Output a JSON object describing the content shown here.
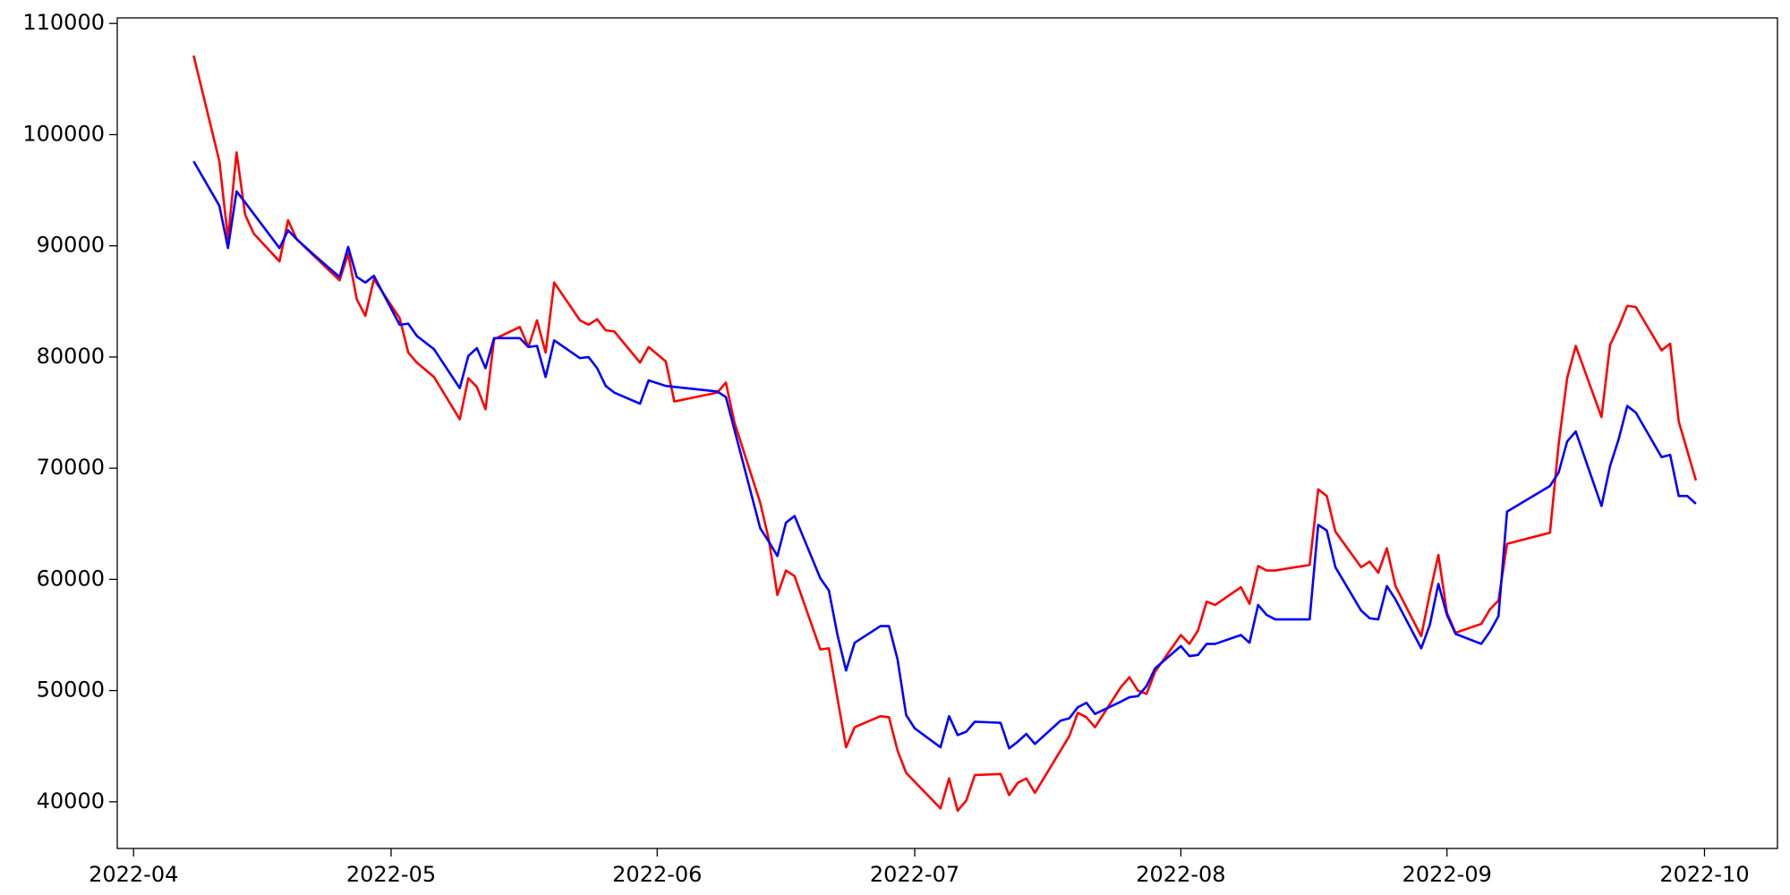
{
  "chart_data": {
    "type": "line",
    "xlim": [
      89.1,
      282.5
    ],
    "xticks": [
      {
        "value": 91,
        "label": "2022-04"
      },
      {
        "value": 121,
        "label": "2022-05"
      },
      {
        "value": 152,
        "label": "2022-06"
      },
      {
        "value": 182,
        "label": "2022-07"
      },
      {
        "value": 213,
        "label": "2022-08"
      },
      {
        "value": 244,
        "label": "2022-09"
      },
      {
        "value": 274,
        "label": "2022-10"
      }
    ],
    "ylim": [
      35800,
      110500
    ],
    "yticks": [
      40000,
      50000,
      60000,
      70000,
      80000,
      90000,
      100000,
      110000
    ],
    "grid": false,
    "series": [
      {
        "color": "#ff0000",
        "x": [
          98,
          101,
          102,
          103,
          104,
          105,
          108,
          109,
          110,
          112,
          115,
          116,
          117,
          118,
          119,
          122,
          123,
          124,
          126,
          129,
          130,
          131,
          132,
          133,
          136,
          137,
          138,
          139,
          140,
          143,
          144,
          145,
          146,
          147,
          150,
          151,
          153,
          154,
          159,
          160,
          161,
          164,
          165,
          166,
          167,
          168,
          171,
          172,
          173,
          174,
          175,
          178,
          179,
          180,
          181,
          185,
          186,
          187,
          188,
          189,
          192,
          193,
          194,
          195,
          196,
          200,
          201,
          202,
          203,
          206,
          207,
          208,
          209,
          210,
          213,
          214,
          215,
          216,
          217,
          220,
          221,
          222,
          223,
          224,
          228,
          229,
          230,
          231,
          234,
          235,
          236,
          237,
          238,
          241,
          242,
          243,
          244,
          245,
          248,
          249,
          250,
          251,
          256,
          257,
          258,
          259,
          262,
          263,
          264,
          265,
          266,
          269,
          270,
          271,
          273
        ],
        "values": [
          107100,
          97600,
          90600,
          98400,
          92800,
          91100,
          88600,
          92300,
          90600,
          89100,
          86900,
          89300,
          85200,
          83700,
          87000,
          83500,
          80400,
          79500,
          78200,
          74400,
          78100,
          77300,
          75300,
          81600,
          82700,
          80900,
          83300,
          80400,
          86700,
          83300,
          82900,
          83400,
          82400,
          82300,
          79500,
          80900,
          79600,
          76000,
          76800,
          77700,
          74100,
          66900,
          63600,
          58600,
          60800,
          60300,
          53700,
          53800,
          49300,
          44900,
          46700,
          47700,
          47600,
          44600,
          42600,
          39400,
          42100,
          39200,
          40100,
          42400,
          42500,
          40600,
          41700,
          42100,
          40800,
          45900,
          48000,
          47600,
          46700,
          50300,
          51200,
          50000,
          49700,
          51700,
          55000,
          54200,
          55400,
          58000,
          57700,
          59300,
          57800,
          61200,
          60800,
          60800,
          61300,
          68100,
          67500,
          64300,
          61100,
          61600,
          60600,
          62800,
          59400,
          54900,
          58700,
          62200,
          57000,
          55200,
          56000,
          57300,
          58100,
          63200,
          64200,
          72100,
          78100,
          81000,
          74600,
          81100,
          82700,
          84600,
          84500,
          80600,
          81200,
          74200,
          68900
        ]
      },
      {
        "color": "#0000ff",
        "x": [
          98,
          101,
          102,
          103,
          104,
          108,
          109,
          110,
          112,
          115,
          116,
          117,
          118,
          119,
          122,
          123,
          124,
          126,
          129,
          130,
          131,
          132,
          133,
          136,
          137,
          138,
          139,
          140,
          143,
          144,
          145,
          146,
          147,
          150,
          151,
          153,
          159,
          160,
          164,
          165,
          166,
          167,
          168,
          171,
          172,
          173,
          174,
          175,
          178,
          179,
          180,
          181,
          182,
          185,
          186,
          187,
          188,
          189,
          192,
          193,
          194,
          195,
          196,
          199,
          200,
          201,
          202,
          203,
          206,
          207,
          208,
          209,
          210,
          213,
          214,
          215,
          216,
          217,
          220,
          221,
          222,
          223,
          224,
          228,
          229,
          230,
          231,
          234,
          235,
          236,
          237,
          238,
          241,
          242,
          243,
          244,
          245,
          248,
          249,
          250,
          251,
          256,
          257,
          258,
          259,
          262,
          263,
          264,
          265,
          266,
          269,
          270,
          271,
          272,
          273
        ],
        "values": [
          97600,
          93600,
          89800,
          94900,
          93900,
          89800,
          91400,
          90600,
          89200,
          87200,
          89900,
          87200,
          86700,
          87300,
          82900,
          83000,
          81900,
          80700,
          77200,
          80100,
          80800,
          79000,
          81700,
          81700,
          80900,
          81000,
          78200,
          81500,
          79900,
          80000,
          79000,
          77400,
          76800,
          75800,
          77900,
          77400,
          76900,
          76400,
          64600,
          63400,
          62100,
          65100,
          65700,
          60100,
          59000,
          55000,
          51800,
          54300,
          55800,
          55800,
          52800,
          47800,
          46600,
          44900,
          47700,
          46000,
          46300,
          47200,
          47100,
          44800,
          45400,
          46100,
          45200,
          47300,
          47500,
          48500,
          48900,
          47900,
          49000,
          49400,
          49500,
          50400,
          52000,
          54000,
          53100,
          53200,
          54200,
          54200,
          55000,
          54300,
          57700,
          56800,
          56400,
          56400,
          64900,
          64400,
          61100,
          57200,
          56500,
          56400,
          59400,
          58200,
          53800,
          55900,
          59600,
          56800,
          55100,
          54200,
          55300,
          56700,
          66100,
          68400,
          69600,
          72400,
          73300,
          66600,
          70200,
          72600,
          75600,
          75000,
          71000,
          71200,
          67500,
          67500,
          66800
        ]
      }
    ]
  }
}
